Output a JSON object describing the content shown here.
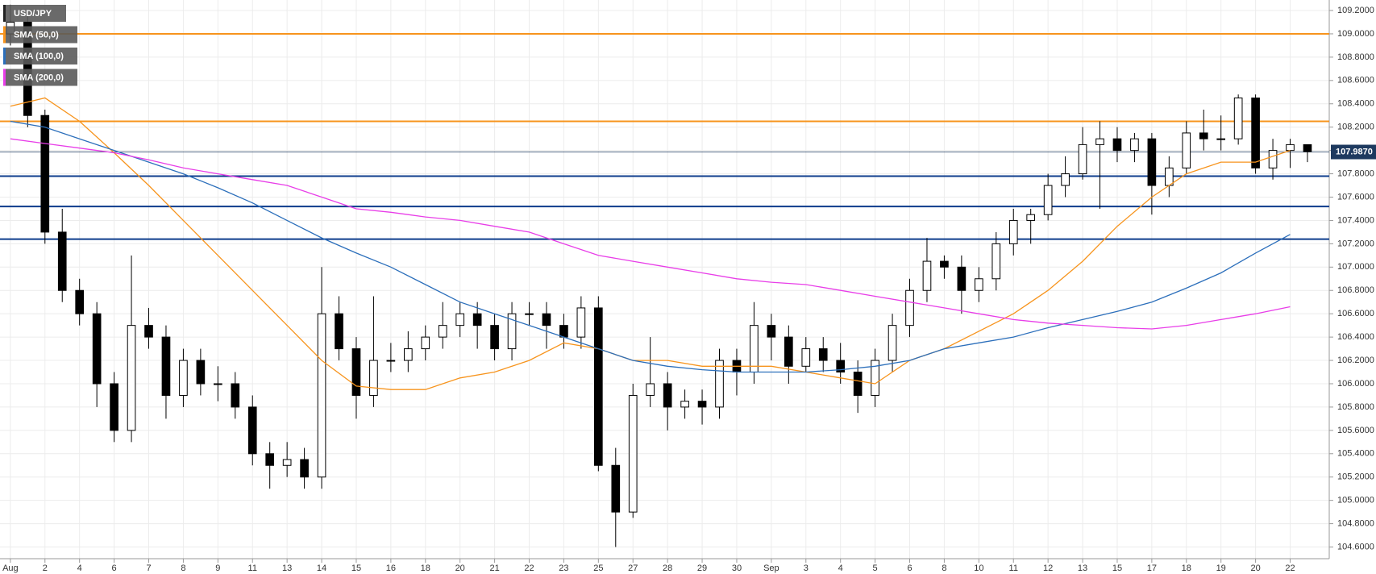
{
  "chart_data": {
    "type": "candlestick",
    "grid": true,
    "xlim": [
      -0.3,
      38.13
    ],
    "ylim": [
      104.5,
      109.29
    ],
    "xticks": [
      {
        "value": 0,
        "label": "Aug"
      },
      {
        "value": 1,
        "label": "2"
      },
      {
        "value": 2,
        "label": "4"
      },
      {
        "value": 3,
        "label": "6"
      },
      {
        "value": 4,
        "label": "7"
      },
      {
        "value": 5,
        "label": "8"
      },
      {
        "value": 6,
        "label": "9"
      },
      {
        "value": 7,
        "label": "11"
      },
      {
        "value": 8,
        "label": "13"
      },
      {
        "value": 9,
        "label": "14"
      },
      {
        "value": 10,
        "label": "15"
      },
      {
        "value": 11,
        "label": "16"
      },
      {
        "value": 12,
        "label": "18"
      },
      {
        "value": 13,
        "label": "20"
      },
      {
        "value": 14,
        "label": "21"
      },
      {
        "value": 15,
        "label": "22"
      },
      {
        "value": 16,
        "label": "23"
      },
      {
        "value": 17,
        "label": "25"
      },
      {
        "value": 18,
        "label": "27"
      },
      {
        "value": 19,
        "label": "28"
      },
      {
        "value": 20,
        "label": "29"
      },
      {
        "value": 21,
        "label": "30"
      },
      {
        "value": 22,
        "label": "Sep"
      },
      {
        "value": 23,
        "label": "3"
      },
      {
        "value": 24,
        "label": "4"
      },
      {
        "value": 25,
        "label": "5"
      },
      {
        "value": 26,
        "label": "6"
      },
      {
        "value": 27,
        "label": "8"
      },
      {
        "value": 28,
        "label": "10"
      },
      {
        "value": 29,
        "label": "11"
      },
      {
        "value": 30,
        "label": "12"
      },
      {
        "value": 31,
        "label": "13"
      },
      {
        "value": 32,
        "label": "15"
      },
      {
        "value": 33,
        "label": "17"
      },
      {
        "value": 34,
        "label": "18"
      },
      {
        "value": 35,
        "label": "19"
      },
      {
        "value": 36,
        "label": "20"
      },
      {
        "value": 37,
        "label": "22"
      }
    ],
    "yticks": [
      {
        "value": 104.6,
        "label": "104.6000"
      },
      {
        "value": 104.8,
        "label": "104.8000"
      },
      {
        "value": 105.0,
        "label": "105.0000"
      },
      {
        "value": 105.2,
        "label": "105.2000"
      },
      {
        "value": 105.4,
        "label": "105.4000"
      },
      {
        "value": 105.6,
        "label": "105.6000"
      },
      {
        "value": 105.8,
        "label": "105.8000"
      },
      {
        "value": 106.0,
        "label": "106.0000"
      },
      {
        "value": 106.2,
        "label": "106.2000"
      },
      {
        "value": 106.4,
        "label": "106.4000"
      },
      {
        "value": 106.6,
        "label": "106.6000"
      },
      {
        "value": 106.8,
        "label": "106.8000"
      },
      {
        "value": 107.0,
        "label": "107.0000"
      },
      {
        "value": 107.2,
        "label": "107.2000"
      },
      {
        "value": 107.4,
        "label": "107.4000"
      },
      {
        "value": 107.6,
        "label": "107.6000"
      },
      {
        "value": 107.8,
        "label": "107.8000"
      },
      {
        "value": 108.0,
        "label": "108.0000"
      },
      {
        "value": 108.2,
        "label": "108.2000"
      },
      {
        "value": 108.4,
        "label": "108.4000"
      },
      {
        "value": 108.6,
        "label": "108.6000"
      },
      {
        "value": 108.8,
        "label": "108.8000"
      },
      {
        "value": 109.0,
        "label": "109.0000"
      },
      {
        "value": 109.2,
        "label": "109.2000"
      }
    ],
    "hlines": [
      {
        "value": 109.0,
        "color": "#f7941d"
      },
      {
        "value": 108.25,
        "color": "#f7941d"
      },
      {
        "value": 107.78,
        "color": "#0d3c8c"
      },
      {
        "value": 107.52,
        "color": "#0d3c8c"
      },
      {
        "value": 107.24,
        "color": "#0d3c8c"
      }
    ],
    "last_price": {
      "value": 107.987,
      "label": "107.9870"
    },
    "series": [
      {
        "name": "USD/JPY",
        "type": "candlestick",
        "color": "#000000",
        "x": [
          0,
          0.5,
          1,
          1.5,
          2,
          2.5,
          3,
          3.5,
          4,
          4.5,
          5,
          5.5,
          6,
          6.5,
          7,
          7.5,
          8,
          8.5,
          9,
          9.5,
          10,
          10.5,
          11,
          11.5,
          12,
          12.5,
          13,
          13.5,
          14,
          14.5,
          15,
          15.5,
          16,
          16.5,
          17,
          17.5,
          18,
          18.5,
          19,
          19.5,
          20,
          20.5,
          21,
          21.5,
          22,
          22.5,
          23,
          23.5,
          24,
          24.5,
          25,
          25.5,
          26,
          26.5,
          27,
          27.5,
          28,
          28.5,
          29,
          29.5,
          30,
          30.5,
          31,
          31.5,
          32,
          32.5,
          33,
          33.5,
          34,
          34.5,
          35,
          35.5,
          36,
          36.5,
          37,
          37.5
        ],
        "open": [
          109.0,
          109.1,
          108.3,
          107.3,
          106.8,
          106.6,
          106.0,
          105.6,
          106.5,
          106.4,
          105.9,
          106.2,
          106.0,
          106.0,
          105.8,
          105.4,
          105.3,
          105.35,
          105.2,
          106.6,
          106.3,
          105.9,
          106.2,
          106.2,
          106.3,
          106.4,
          106.5,
          106.6,
          106.5,
          106.3,
          106.6,
          106.6,
          106.5,
          106.4,
          106.65,
          105.3,
          104.9,
          105.9,
          106.0,
          105.8,
          105.85,
          105.8,
          106.2,
          106.1,
          106.5,
          106.4,
          106.15,
          106.3,
          106.2,
          106.1,
          105.9,
          106.2,
          106.5,
          106.8,
          107.05,
          107.0,
          106.8,
          106.9,
          107.2,
          107.4,
          107.45,
          107.7,
          107.8,
          108.05,
          108.1,
          108.0,
          108.1,
          107.7,
          107.85,
          108.15,
          108.1,
          108.1,
          108.45,
          107.85,
          108.0,
          108.05
        ],
        "high": [
          109.25,
          109.2,
          108.35,
          107.5,
          106.9,
          106.7,
          106.1,
          107.1,
          106.65,
          106.5,
          106.3,
          106.3,
          106.15,
          106.1,
          105.9,
          105.5,
          105.5,
          105.45,
          107.0,
          106.75,
          106.4,
          106.75,
          106.35,
          106.45,
          106.5,
          106.7,
          106.7,
          106.7,
          106.6,
          106.7,
          106.7,
          106.7,
          106.6,
          106.75,
          106.75,
          105.45,
          106.0,
          106.4,
          106.1,
          105.95,
          105.95,
          106.3,
          106.3,
          106.7,
          106.6,
          106.5,
          106.4,
          106.4,
          106.35,
          106.2,
          106.3,
          106.6,
          106.9,
          107.25,
          107.1,
          107.1,
          107.0,
          107.3,
          107.5,
          107.5,
          107.8,
          107.95,
          108.2,
          108.25,
          108.2,
          108.15,
          108.15,
          107.95,
          108.25,
          108.35,
          108.3,
          108.48,
          108.48,
          108.1,
          108.1,
          108.05
        ],
        "low": [
          108.9,
          108.2,
          107.2,
          106.7,
          106.5,
          105.8,
          105.5,
          105.5,
          106.3,
          105.7,
          105.8,
          105.9,
          105.85,
          105.7,
          105.3,
          105.1,
          105.2,
          105.1,
          105.1,
          106.2,
          105.7,
          105.8,
          106.1,
          106.1,
          106.2,
          106.3,
          106.4,
          106.3,
          106.2,
          106.2,
          106.5,
          106.3,
          106.3,
          106.3,
          105.25,
          104.6,
          104.85,
          105.8,
          105.6,
          105.7,
          105.65,
          105.7,
          105.9,
          106.0,
          106.2,
          106.0,
          106.1,
          106.1,
          106.0,
          105.75,
          105.8,
          106.1,
          106.4,
          106.7,
          106.9,
          106.6,
          106.7,
          106.8,
          107.1,
          107.2,
          107.4,
          107.6,
          107.75,
          107.5,
          107.9,
          107.9,
          107.45,
          107.6,
          107.8,
          108.0,
          108.0,
          108.05,
          107.8,
          107.75,
          107.85,
          107.9
        ],
        "close": [
          109.1,
          108.3,
          107.3,
          106.8,
          106.6,
          106.0,
          105.6,
          106.5,
          106.4,
          105.9,
          106.2,
          106.0,
          106.0,
          105.8,
          105.4,
          105.3,
          105.35,
          105.2,
          106.6,
          106.3,
          105.9,
          106.2,
          106.2,
          106.3,
          106.4,
          106.5,
          106.6,
          106.5,
          106.3,
          106.6,
          106.6,
          106.5,
          106.4,
          106.65,
          105.3,
          104.9,
          105.9,
          106.0,
          105.8,
          105.85,
          105.8,
          106.2,
          106.1,
          106.5,
          106.4,
          106.15,
          106.3,
          106.2,
          106.1,
          105.9,
          106.2,
          106.5,
          106.8,
          107.05,
          107.0,
          106.8,
          106.9,
          107.2,
          107.4,
          107.45,
          107.7,
          107.8,
          108.05,
          108.1,
          108.0,
          108.1,
          107.7,
          107.85,
          108.15,
          108.1,
          108.1,
          108.45,
          107.85,
          108.0,
          108.05,
          107.99
        ]
      },
      {
        "name": "SMA (50,0)",
        "type": "line",
        "color": "#f7941d",
        "x": [
          0,
          1,
          2,
          3,
          4,
          5,
          6,
          7,
          8,
          9,
          10,
          11,
          12,
          13,
          14,
          15,
          16,
          17,
          18,
          19,
          20,
          21,
          22,
          23,
          24,
          25,
          26,
          27,
          28,
          29,
          30,
          31,
          32,
          33,
          34,
          35,
          36,
          37
        ],
        "values": [
          108.38,
          108.45,
          108.25,
          107.98,
          107.7,
          107.4,
          107.1,
          106.8,
          106.5,
          106.2,
          105.98,
          105.95,
          105.95,
          106.05,
          106.1,
          106.2,
          106.35,
          106.3,
          106.2,
          106.2,
          106.15,
          106.15,
          106.15,
          106.1,
          106.05,
          106.0,
          106.2,
          106.3,
          106.45,
          106.6,
          106.8,
          107.05,
          107.35,
          107.6,
          107.8,
          107.9,
          107.9,
          108.0
        ]
      },
      {
        "name": "SMA (100,0)",
        "type": "line",
        "color": "#2c6fbb",
        "x": [
          0,
          1,
          2,
          3,
          4,
          5,
          6,
          7,
          8,
          9,
          10,
          11,
          12,
          13,
          14,
          15,
          16,
          17,
          18,
          19,
          20,
          21,
          22,
          23,
          24,
          25,
          26,
          27,
          28,
          29,
          30,
          31,
          32,
          33,
          34,
          35,
          36,
          37
        ],
        "values": [
          108.25,
          108.2,
          108.1,
          108.0,
          107.9,
          107.8,
          107.68,
          107.55,
          107.4,
          107.25,
          107.12,
          107.0,
          106.85,
          106.7,
          106.6,
          106.5,
          106.4,
          106.3,
          106.2,
          106.15,
          106.12,
          106.1,
          106.1,
          106.1,
          106.12,
          106.15,
          106.2,
          106.3,
          106.35,
          106.4,
          106.48,
          106.55,
          106.62,
          106.7,
          106.82,
          106.95,
          107.12,
          107.28
        ]
      },
      {
        "name": "SMA (200,0)",
        "type": "line",
        "color": "#e83ee8",
        "x": [
          0,
          1,
          2,
          3,
          4,
          5,
          6,
          7,
          8,
          9,
          10,
          11,
          12,
          13,
          14,
          15,
          16,
          17,
          18,
          19,
          20,
          21,
          22,
          23,
          24,
          25,
          26,
          27,
          28,
          29,
          30,
          31,
          32,
          33,
          34,
          35,
          36,
          37
        ],
        "values": [
          108.1,
          108.06,
          108.02,
          107.98,
          107.92,
          107.85,
          107.8,
          107.75,
          107.7,
          107.6,
          107.5,
          107.47,
          107.43,
          107.4,
          107.35,
          107.3,
          107.2,
          107.1,
          107.05,
          107.0,
          106.95,
          106.9,
          106.87,
          106.85,
          106.8,
          106.75,
          106.7,
          106.65,
          106.6,
          106.55,
          106.52,
          106.5,
          106.48,
          106.47,
          106.5,
          106.55,
          106.6,
          106.66
        ]
      }
    ]
  }
}
